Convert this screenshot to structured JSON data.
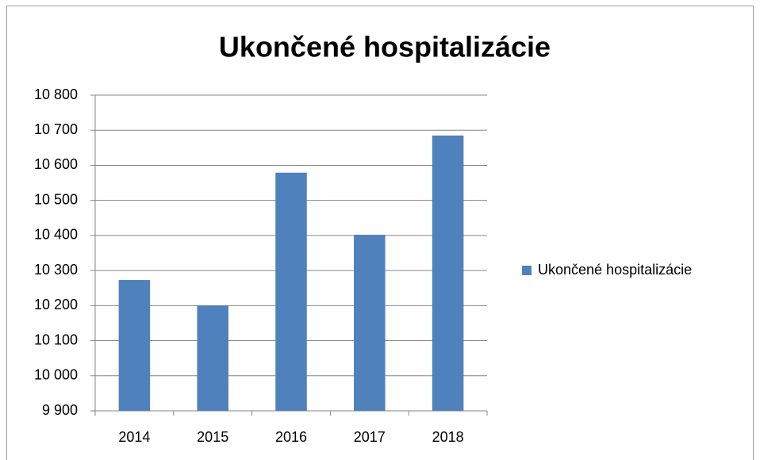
{
  "chart_data": {
    "type": "bar",
    "title": "Ukončené hospitalizácie",
    "categories": [
      "2014",
      "2015",
      "2016",
      "2017",
      "2018"
    ],
    "series": [
      {
        "name": "Ukončené hospitalizácie",
        "color": "#4f81bd",
        "values": [
          10273,
          10200,
          10579,
          10402,
          10685
        ]
      }
    ],
    "ylim": [
      9900,
      10800
    ],
    "yticks": [
      {
        "value": 9900,
        "label": "9 900"
      },
      {
        "value": 10000,
        "label": "10 000"
      },
      {
        "value": 10100,
        "label": "10 100"
      },
      {
        "value": 10200,
        "label": "10 200"
      },
      {
        "value": 10300,
        "label": "10 300"
      },
      {
        "value": 10400,
        "label": "10 400"
      },
      {
        "value": 10500,
        "label": "10 500"
      },
      {
        "value": 10600,
        "label": "10 600"
      },
      {
        "value": 10700,
        "label": "10 700"
      },
      {
        "value": 10800,
        "label": "10 800"
      }
    ],
    "grid": true,
    "legend": "right"
  }
}
